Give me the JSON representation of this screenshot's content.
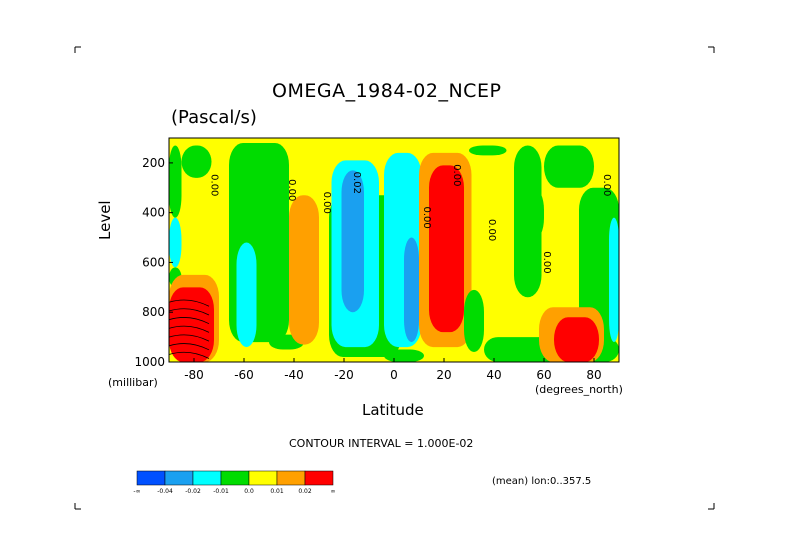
{
  "chart_data": {
    "type": "heatmap",
    "title": "OMEGA_1984-02_NCEP",
    "units": "(Pascal/s)",
    "xlabel": "Latitude",
    "ylabel": "Level",
    "x_unit_label": "(degrees_north)",
    "y_unit_label": "(millibar)",
    "xlim": [
      -90,
      90
    ],
    "ylim": [
      1000,
      100
    ],
    "x_ticks": [
      -80,
      -60,
      -40,
      -20,
      0,
      20,
      40,
      60,
      80
    ],
    "y_ticks": [
      200,
      400,
      600,
      800,
      1000
    ],
    "contour_interval_text": "CONTOUR INTERVAL = 1.000E-02",
    "mean_text": "(mean) lon:0..357.5",
    "contour_labels": [
      "0.00",
      "0.00",
      "0.00",
      "0.02",
      "0.00",
      "0.00",
      "0.00",
      "0.00",
      "0.00"
    ],
    "colorbar": {
      "colors": [
        "#0050ff",
        "#1aa0f0",
        "#00ffff",
        "#00dc00",
        "#ffff00",
        "#ffa000",
        "#ff0000"
      ],
      "labels": [
        "-∞",
        "-0.04",
        "-0.02",
        "-0.01",
        "0.0",
        "0.01",
        "0.02",
        "∞"
      ]
    },
    "regions": [
      {
        "cat": 4,
        "x": [
          -90,
          90
        ],
        "y": [
          100,
          1000
        ]
      },
      {
        "cat": 3,
        "x": [
          -90,
          -85
        ],
        "y": [
          130,
          420
        ]
      },
      {
        "cat": 3,
        "x": [
          -85,
          -73
        ],
        "y": [
          130,
          260
        ]
      },
      {
        "cat": 2,
        "x": [
          -90,
          -85
        ],
        "y": [
          420,
          620
        ]
      },
      {
        "cat": 3,
        "x": [
          -90,
          -85
        ],
        "y": [
          620,
          700
        ]
      },
      {
        "cat": 3,
        "x": [
          -66,
          -42
        ],
        "y": [
          120,
          920
        ]
      },
      {
        "cat": 3,
        "x": [
          -50,
          -36
        ],
        "y": [
          890,
          950
        ]
      },
      {
        "cat": 2,
        "x": [
          -63,
          -55
        ],
        "y": [
          520,
          940
        ]
      },
      {
        "cat": 5,
        "x": [
          -42,
          -30
        ],
        "y": [
          330,
          930
        ]
      },
      {
        "cat": 3,
        "x": [
          -26,
          3
        ],
        "y": [
          330,
          980
        ]
      },
      {
        "cat": 2,
        "x": [
          -25,
          -6
        ],
        "y": [
          190,
          940
        ]
      },
      {
        "cat": 1,
        "x": [
          -21,
          -12
        ],
        "y": [
          230,
          800
        ]
      },
      {
        "cat": 2,
        "x": [
          -4,
          11
        ],
        "y": [
          160,
          940
        ]
      },
      {
        "cat": 1,
        "x": [
          4,
          10
        ],
        "y": [
          500,
          920
        ]
      },
      {
        "cat": 3,
        "x": [
          -4,
          12
        ],
        "y": [
          950,
          1000
        ]
      },
      {
        "cat": 5,
        "x": [
          10,
          31
        ],
        "y": [
          160,
          940
        ]
      },
      {
        "cat": 6,
        "x": [
          14,
          28
        ],
        "y": [
          210,
          880
        ]
      },
      {
        "cat": 3,
        "x": [
          28,
          36
        ],
        "y": [
          710,
          960
        ]
      },
      {
        "cat": 3,
        "x": [
          36,
          90
        ],
        "y": [
          900,
          1000
        ]
      },
      {
        "cat": 3,
        "x": [
          30,
          45
        ],
        "y": [
          130,
          170
        ]
      },
      {
        "cat": 3,
        "x": [
          48,
          59
        ],
        "y": [
          130,
          740
        ]
      },
      {
        "cat": 3,
        "x": [
          52,
          60
        ],
        "y": [
          300,
          510
        ]
      },
      {
        "cat": 3,
        "x": [
          60,
          80
        ],
        "y": [
          130,
          300
        ]
      },
      {
        "cat": 3,
        "x": [
          74,
          90
        ],
        "y": [
          300,
          920
        ]
      },
      {
        "cat": 2,
        "x": [
          86,
          90
        ],
        "y": [
          420,
          920
        ]
      },
      {
        "cat": 5,
        "x": [
          58,
          84
        ],
        "y": [
          780,
          1000
        ]
      },
      {
        "cat": 6,
        "x": [
          64,
          82
        ],
        "y": [
          820,
          1000
        ]
      },
      {
        "cat": 5,
        "x": [
          -90,
          -70
        ],
        "y": [
          650,
          1000
        ]
      },
      {
        "cat": 6,
        "x": [
          -90,
          -72
        ],
        "y": [
          700,
          1000
        ]
      }
    ]
  }
}
